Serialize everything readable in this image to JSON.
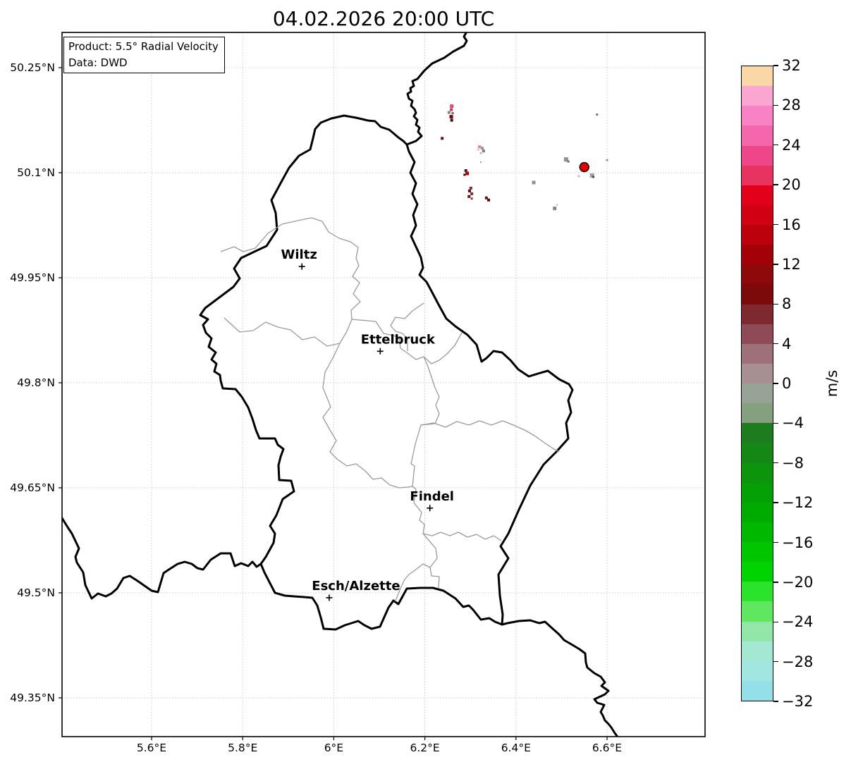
{
  "figure": {
    "title": "04.02.2026 20:00 UTC",
    "background": "#ffffff",
    "border_color": "#000000",
    "grid_color": "#c8c8c8",
    "canton_line_color": "#9a9a9a"
  },
  "info_box": {
    "line1": "Product: 5.5° Radial Velocity",
    "line2": "Data: DWD"
  },
  "axes": {
    "x_ticks": [
      {
        "label": "5.6°E",
        "lon": 5.6
      },
      {
        "label": "5.8°E",
        "lon": 5.8
      },
      {
        "label": "6°E",
        "lon": 6.0
      },
      {
        "label": "6.2°E",
        "lon": 6.2
      },
      {
        "label": "6.4°E",
        "lon": 6.4
      },
      {
        "label": "6.6°E",
        "lon": 6.6
      }
    ],
    "y_ticks": [
      {
        "label": "50.25°N",
        "lat": 50.25
      },
      {
        "label": "50.1°N",
        "lat": 50.1
      },
      {
        "label": "49.95°N",
        "lat": 49.95
      },
      {
        "label": "49.8°N",
        "lat": 49.8
      },
      {
        "label": "49.65°N",
        "lat": 49.65
      },
      {
        "label": "49.5°N",
        "lat": 49.5
      },
      {
        "label": "49.35°N",
        "lat": 49.35
      }
    ]
  },
  "colorbar": {
    "title": "m/s",
    "max": 32,
    "min": -32,
    "segment_step": 2,
    "tick_labels": [
      "32",
      "28",
      "24",
      "20",
      "16",
      "12",
      "8",
      "4",
      "0",
      "−4",
      "−8",
      "−12",
      "−16",
      "−20",
      "−24",
      "−28",
      "−32"
    ],
    "colors_top_to_bottom": [
      "#fbd7a7",
      "#fba6d0",
      "#f982c6",
      "#f567ad",
      "#ef4589",
      "#e83360",
      "#e2001a",
      "#d20013",
      "#bc000c",
      "#a40007",
      "#8e0a0a",
      "#7c0a0a",
      "#7e2830",
      "#8f4a57",
      "#9e7079",
      "#a78f94",
      "#97a394",
      "#84a07e",
      "#1d7c1d",
      "#148714",
      "#0c940c",
      "#05a005",
      "#00ab00",
      "#00b800",
      "#00c600",
      "#00d400",
      "#2ce32c",
      "#5fe75f",
      "#92e7a8",
      "#a4e8d4",
      "#a2e6e2",
      "#93e0e8"
    ]
  },
  "cities": [
    {
      "name": "Wiltz",
      "lon": 5.93,
      "lat": 49.966,
      "label_dx": -4
    },
    {
      "name": "Ettelbruck",
      "lon": 6.102,
      "lat": 49.845,
      "label_dx": 25
    },
    {
      "name": "Findel",
      "lon": 6.211,
      "lat": 49.621,
      "label_dx": 3
    },
    {
      "name": "Esch/Alzette",
      "lon": 5.99,
      "lat": 49.493,
      "label_dx": 38
    }
  ],
  "max_marker": {
    "lon": 6.55,
    "lat": 50.108,
    "radius": 6.5,
    "fill": "#e80000",
    "edge": "#000000"
  },
  "radar_cells": [
    {
      "lon": 6.259,
      "lat": 50.195,
      "s": 5,
      "c": "#e8436a"
    },
    {
      "lon": 6.258,
      "lat": 50.19,
      "s": 4,
      "c": "#c83a5a"
    },
    {
      "lon": 6.253,
      "lat": 50.186,
      "s": 4,
      "c": "#7e8a78"
    },
    {
      "lon": 6.261,
      "lat": 50.185,
      "s": 3,
      "c": "#8a4a52"
    },
    {
      "lon": 6.258,
      "lat": 50.18,
      "s": 5,
      "c": "#6b0a10"
    },
    {
      "lon": 6.259,
      "lat": 50.175,
      "s": 4,
      "c": "#4f070b"
    },
    {
      "lon": 6.238,
      "lat": 50.149,
      "s": 4,
      "c": "#7a0b10"
    },
    {
      "lon": 6.32,
      "lat": 50.137,
      "s": 4,
      "c": "#e87b9c"
    },
    {
      "lon": 6.317,
      "lat": 50.133,
      "s": 3,
      "c": "#f2b8c8"
    },
    {
      "lon": 6.326,
      "lat": 50.135,
      "s": 4,
      "c": "#8a9a8a"
    },
    {
      "lon": 6.329,
      "lat": 50.131,
      "s": 4,
      "c": "#6f8a6f"
    },
    {
      "lon": 6.323,
      "lat": 50.128,
      "s": 3,
      "c": "#b4bab4"
    },
    {
      "lon": 6.323,
      "lat": 50.115,
      "s": 2,
      "c": "#909890"
    },
    {
      "lon": 6.29,
      "lat": 50.103,
      "s": 4,
      "c": "#6b0a10"
    },
    {
      "lon": 6.293,
      "lat": 50.099,
      "s": 5,
      "c": "#a00b14"
    },
    {
      "lon": 6.287,
      "lat": 50.097,
      "s": 3,
      "c": "#3f0608"
    },
    {
      "lon": 6.301,
      "lat": 50.078,
      "s": 4,
      "c": "#7c2a35"
    },
    {
      "lon": 6.298,
      "lat": 50.074,
      "s": 4,
      "c": "#5d0a0d"
    },
    {
      "lon": 6.303,
      "lat": 50.07,
      "s": 4,
      "c": "#7c2a35"
    },
    {
      "lon": 6.297,
      "lat": 50.066,
      "s": 4,
      "c": "#6b0a10"
    },
    {
      "lon": 6.303,
      "lat": 50.063,
      "s": 3,
      "c": "#8a3a44"
    },
    {
      "lon": 6.335,
      "lat": 50.064,
      "s": 4,
      "c": "#6b0a10"
    },
    {
      "lon": 6.34,
      "lat": 50.061,
      "s": 4,
      "c": "#570709"
    },
    {
      "lon": 6.51,
      "lat": 50.119,
      "s": 6,
      "c": "#8a948a"
    },
    {
      "lon": 6.515,
      "lat": 50.116,
      "s": 3,
      "c": "#5f6f5f"
    },
    {
      "lon": 6.6,
      "lat": 50.118,
      "s": 3,
      "c": "#909890"
    },
    {
      "lon": 6.578,
      "lat": 50.183,
      "s": 3,
      "c": "#6f7a6f"
    },
    {
      "lon": 6.538,
      "lat": 50.095,
      "s": 3,
      "c": "#b8c0b8"
    },
    {
      "lon": 6.567,
      "lat": 50.096,
      "s": 6,
      "c": "#9aa49a"
    },
    {
      "lon": 6.57,
      "lat": 50.094,
      "s": 3,
      "c": "#3f4f3f"
    },
    {
      "lon": 6.439,
      "lat": 50.086,
      "s": 5,
      "c": "#8a948a"
    },
    {
      "lon": 6.485,
      "lat": 50.049,
      "s": 5,
      "c": "#7f897f"
    },
    {
      "lon": 6.49,
      "lat": 50.054,
      "s": 2,
      "c": "#aab2aa"
    }
  ],
  "chart_data": {
    "type": "map",
    "title": "04.02.2026 20:00 UTC",
    "product": "5.5° Radial Velocity",
    "data_source": "DWD",
    "units": "m/s",
    "colorbar_range": [
      -32,
      32
    ],
    "colorbar_tick_step": 4,
    "lon_range_deg_e": [
      5.403,
      6.815
    ],
    "lat_range_deg_n": [
      49.295,
      50.3
    ],
    "grid": true,
    "labeled_cities": [
      "Wiltz",
      "Ettelbruck",
      "Findel",
      "Esch/Alzette"
    ]
  }
}
